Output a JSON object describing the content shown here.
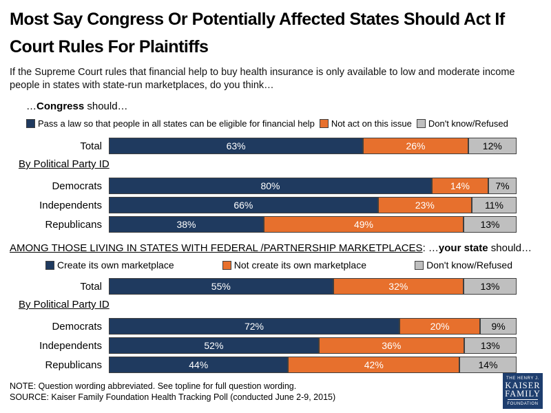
{
  "title": "Most Say Congress Or Potentially Affected States Should Act If Court Rules For Plaintiffs",
  "subtitle": "If the Supreme Court rules that financial help to buy health insurance is only available to low and moderate income people in states with state-run marketplaces, do you think…",
  "colors": {
    "navy": "#1F3A5F",
    "orange": "#E7702D",
    "gray": "#BFBFBF",
    "segment_border": "#3F3F3F",
    "logo_navy": "#1E3E6E"
  },
  "chart_data": [
    {
      "type": "bar",
      "stacked": true,
      "orientation": "horizontal",
      "xlim": [
        0,
        100
      ],
      "value_suffix": "%",
      "label_caps": "",
      "label_mid": "…",
      "label_bold": "Congress",
      "label_suffix": " should…",
      "legend": [
        {
          "label": "Pass a law so that people in all states can be eligible for financial help",
          "color_key": "navy"
        },
        {
          "label": "Not act on this issue",
          "color_key": "orange"
        },
        {
          "label": "Don't know/Refused",
          "color_key": "gray"
        }
      ],
      "group_heading": "By Political Party ID",
      "categories": [
        "Total",
        "Democrats",
        "Independents",
        "Republicans"
      ],
      "series": [
        {
          "name": "Pass a law so that people in all states can be eligible for financial help",
          "values": [
            63,
            80,
            66,
            38
          ]
        },
        {
          "name": "Not act on this issue",
          "values": [
            26,
            14,
            23,
            49
          ]
        },
        {
          "name": "Don't know/Refused",
          "values": [
            12,
            7,
            11,
            13
          ]
        }
      ]
    },
    {
      "type": "bar",
      "stacked": true,
      "orientation": "horizontal",
      "xlim": [
        0,
        100
      ],
      "value_suffix": "%",
      "label_caps": "AMONG THOSE LIVING IN STATES WITH FEDERAL /PARTNERSHIP MARKETPLACES",
      "label_mid": ": …",
      "label_bold": "your state",
      "label_suffix": " should…",
      "legend": [
        {
          "label": "Create its own marketplace",
          "color_key": "navy"
        },
        {
          "label": "Not create its own marketplace",
          "color_key": "orange"
        },
        {
          "label": "Don't know/Refused",
          "color_key": "gray"
        }
      ],
      "group_heading": "By Political Party ID",
      "categories": [
        "Total",
        "Democrats",
        "Independents",
        "Republicans"
      ],
      "series": [
        {
          "name": "Create its own marketplace",
          "values": [
            55,
            72,
            52,
            44
          ]
        },
        {
          "name": "Not create its own marketplace",
          "values": [
            32,
            20,
            36,
            42
          ]
        },
        {
          "name": "Don't know/Refused",
          "values": [
            13,
            9,
            13,
            14
          ]
        }
      ]
    }
  ],
  "footer": {
    "note": "NOTE: Question wording abbreviated.  See topline for full question wording.",
    "source": "SOURCE: Kaiser Family Foundation Health Tracking Poll (conducted June 2-9, 2015)"
  },
  "logo": {
    "line1": "THE HENRY J.",
    "line2": "KAISER",
    "line3": "FAMILY",
    "line4": "FOUNDATION"
  }
}
